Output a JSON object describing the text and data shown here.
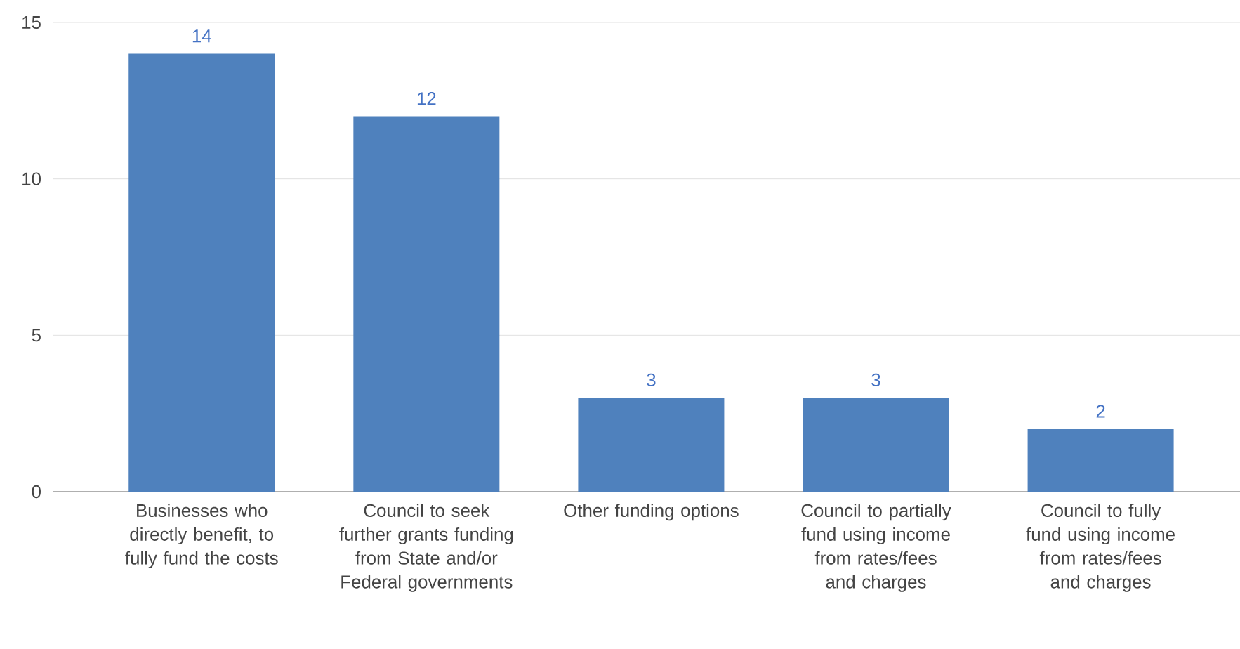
{
  "chart_data": {
    "type": "bar",
    "categories": [
      "Businesses who directly benefit, to fully fund the costs",
      "Council to seek further grants funding from State and/or Federal governments",
      "Other funding options",
      "Council to partially fund using income from rates/fees and charges",
      "Council to fully fund using income from rates/fees and charges"
    ],
    "values": [
      14,
      12,
      3,
      3,
      2
    ],
    "color": "#4f81bd",
    "ylim": [
      0,
      15
    ],
    "yticks": [
      0,
      5,
      10,
      15
    ],
    "grid": "y",
    "data_labels": true
  }
}
